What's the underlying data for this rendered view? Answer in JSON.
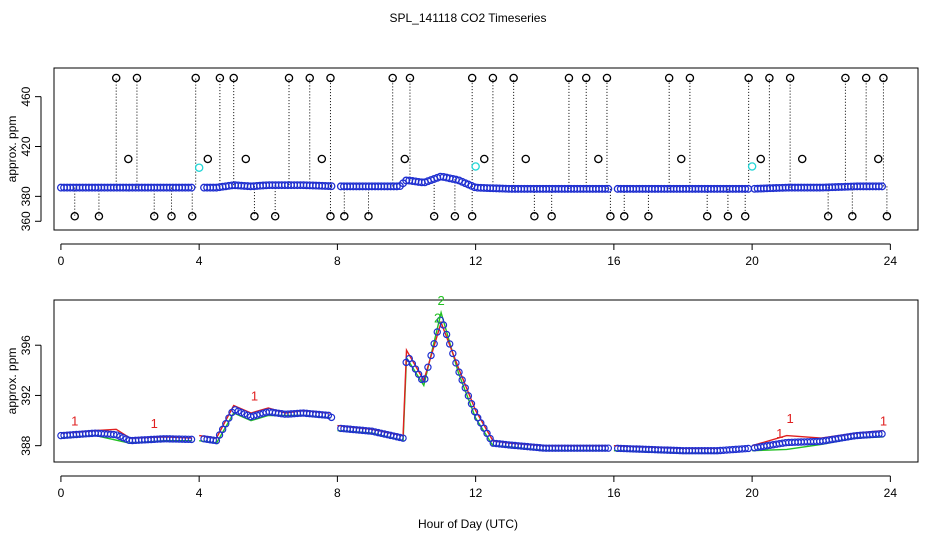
{
  "title": "SPL_141118  CO2 Timeseries",
  "xlabel": "Hour of Day (UTC)",
  "chart_data": [
    {
      "type": "scatter",
      "name": "top-panel",
      "ylabel": "approx. ppm",
      "xlim": [
        -0.2,
        24.8
      ],
      "ylim": [
        353,
        483
      ],
      "xticks": [
        0,
        4,
        8,
        12,
        16,
        20,
        24
      ],
      "yticks": [
        360,
        380,
        420,
        460
      ],
      "baseline": [
        [
          0,
          387
        ],
        [
          1,
          387
        ],
        [
          2,
          387
        ],
        [
          3,
          387
        ],
        [
          4,
          387
        ],
        [
          4.5,
          387
        ],
        [
          5,
          389
        ],
        [
          5.5,
          388
        ],
        [
          6,
          389
        ],
        [
          7,
          389
        ],
        [
          8,
          388
        ],
        [
          9,
          388
        ],
        [
          9.8,
          388
        ],
        [
          10,
          393
        ],
        [
          10.5,
          391
        ],
        [
          11,
          396
        ],
        [
          11.5,
          393
        ],
        [
          12,
          387
        ],
        [
          13,
          386
        ],
        [
          14,
          386
        ],
        [
          15,
          386
        ],
        [
          16,
          386
        ],
        [
          17,
          386
        ],
        [
          18,
          386
        ],
        [
          19,
          386
        ],
        [
          20,
          386
        ],
        [
          21,
          387
        ],
        [
          22,
          387
        ],
        [
          23,
          388
        ],
        [
          23.8,
          388
        ]
      ],
      "outliers_high": [
        1.6,
        2.2,
        3.9,
        4.6,
        5.0,
        6.6,
        7.2,
        7.8,
        9.6,
        10.1,
        11.9,
        12.5,
        13.1,
        14.7,
        15.2,
        15.8,
        17.6,
        18.2,
        19.9,
        20.5,
        21.1,
        22.7,
        23.3,
        23.8
      ],
      "outliers_top_value": 475,
      "outliers_mid_value": 410,
      "outliers_low": [
        0.4,
        1.1,
        2.7,
        3.2,
        3.8,
        5.6,
        6.2,
        7.8,
        8.2,
        8.9,
        10.8,
        11.4,
        11.9,
        13.7,
        14.2,
        15.9,
        16.3,
        17.0,
        18.7,
        19.3,
        19.8,
        22.2,
        22.9,
        23.9
      ],
      "outliers_low_value": 364,
      "cyan_points": [
        [
          4.0,
          403
        ],
        [
          12.0,
          404
        ],
        [
          20.0,
          404
        ]
      ]
    },
    {
      "type": "scatter",
      "name": "bottom-panel",
      "ylabel": "approx. ppm",
      "xlim": [
        -0.2,
        24.8
      ],
      "ylim": [
        386.7,
        399.6
      ],
      "xticks": [
        0,
        4,
        8,
        12,
        16,
        20,
        24
      ],
      "yticks": [
        388,
        392,
        396
      ],
      "series": [
        {
          "name": "1",
          "values": [
            [
              0,
              389.0
            ],
            [
              1,
              389.2
            ],
            [
              1.6,
              389.3
            ],
            [
              2,
              388.6
            ],
            [
              3,
              388.7
            ],
            [
              3.8,
              388.6
            ],
            [
              4,
              388.8
            ],
            [
              4.5,
              388.6
            ],
            [
              5,
              391.2
            ],
            [
              5.5,
              390.6
            ],
            [
              6,
              391.0
            ],
            [
              6.5,
              390.6
            ],
            [
              7,
              390.8
            ],
            [
              7.8,
              390.6
            ],
            [
              8,
              389.6
            ],
            [
              9,
              389.3
            ],
            [
              9.9,
              388.8
            ],
            [
              10,
              395.6
            ],
            [
              10.5,
              393.2
            ],
            [
              11,
              397.8
            ],
            [
              11.5,
              394.2
            ],
            [
              12,
              390.8
            ],
            [
              12.5,
              388.4
            ],
            [
              13,
              388.2
            ],
            [
              14,
              388.0
            ],
            [
              15,
              388.0
            ],
            [
              15.8,
              388.0
            ],
            [
              16,
              388.0
            ],
            [
              17,
              387.9
            ],
            [
              18,
              387.8
            ],
            [
              19,
              387.8
            ],
            [
              20,
              388.0
            ],
            [
              21,
              388.8
            ],
            [
              22,
              388.6
            ],
            [
              23,
              389.0
            ],
            [
              23.8,
              389.2
            ]
          ]
        },
        {
          "name": "2",
          "values": [
            [
              0,
              388.6
            ],
            [
              1,
              388.8
            ],
            [
              2,
              388.2
            ],
            [
              3,
              388.4
            ],
            [
              3.8,
              388.4
            ],
            [
              4,
              388.4
            ],
            [
              4.5,
              388.2
            ],
            [
              5,
              390.6
            ],
            [
              5.5,
              390.0
            ],
            [
              6,
              390.4
            ],
            [
              7,
              390.4
            ],
            [
              7.8,
              390.2
            ],
            [
              8,
              389.2
            ],
            [
              9,
              389.0
            ],
            [
              9.9,
              388.4
            ],
            [
              10,
              395.0
            ],
            [
              10.5,
              392.8
            ],
            [
              11,
              398.6
            ],
            [
              11.5,
              393.8
            ],
            [
              12,
              390.2
            ],
            [
              12.5,
              388.0
            ],
            [
              13,
              387.9
            ],
            [
              14,
              387.6
            ],
            [
              15,
              387.6
            ],
            [
              15.8,
              387.6
            ],
            [
              16,
              387.6
            ],
            [
              17,
              387.5
            ],
            [
              18,
              387.4
            ],
            [
              19,
              387.4
            ],
            [
              20,
              387.6
            ],
            [
              21,
              387.7
            ],
            [
              22,
              388.1
            ],
            [
              23,
              388.6
            ],
            [
              23.8,
              388.7
            ]
          ]
        }
      ],
      "labels_1": [
        [
          0.4,
          389.6
        ],
        [
          2.7,
          389.4
        ],
        [
          5.6,
          391.6
        ],
        [
          20.8,
          388.6
        ],
        [
          21.1,
          389.8
        ],
        [
          23.8,
          389.6
        ]
      ],
      "labels_2": [
        [
          11.0,
          399.2
        ],
        [
          10.9,
          397.8
        ]
      ]
    }
  ]
}
